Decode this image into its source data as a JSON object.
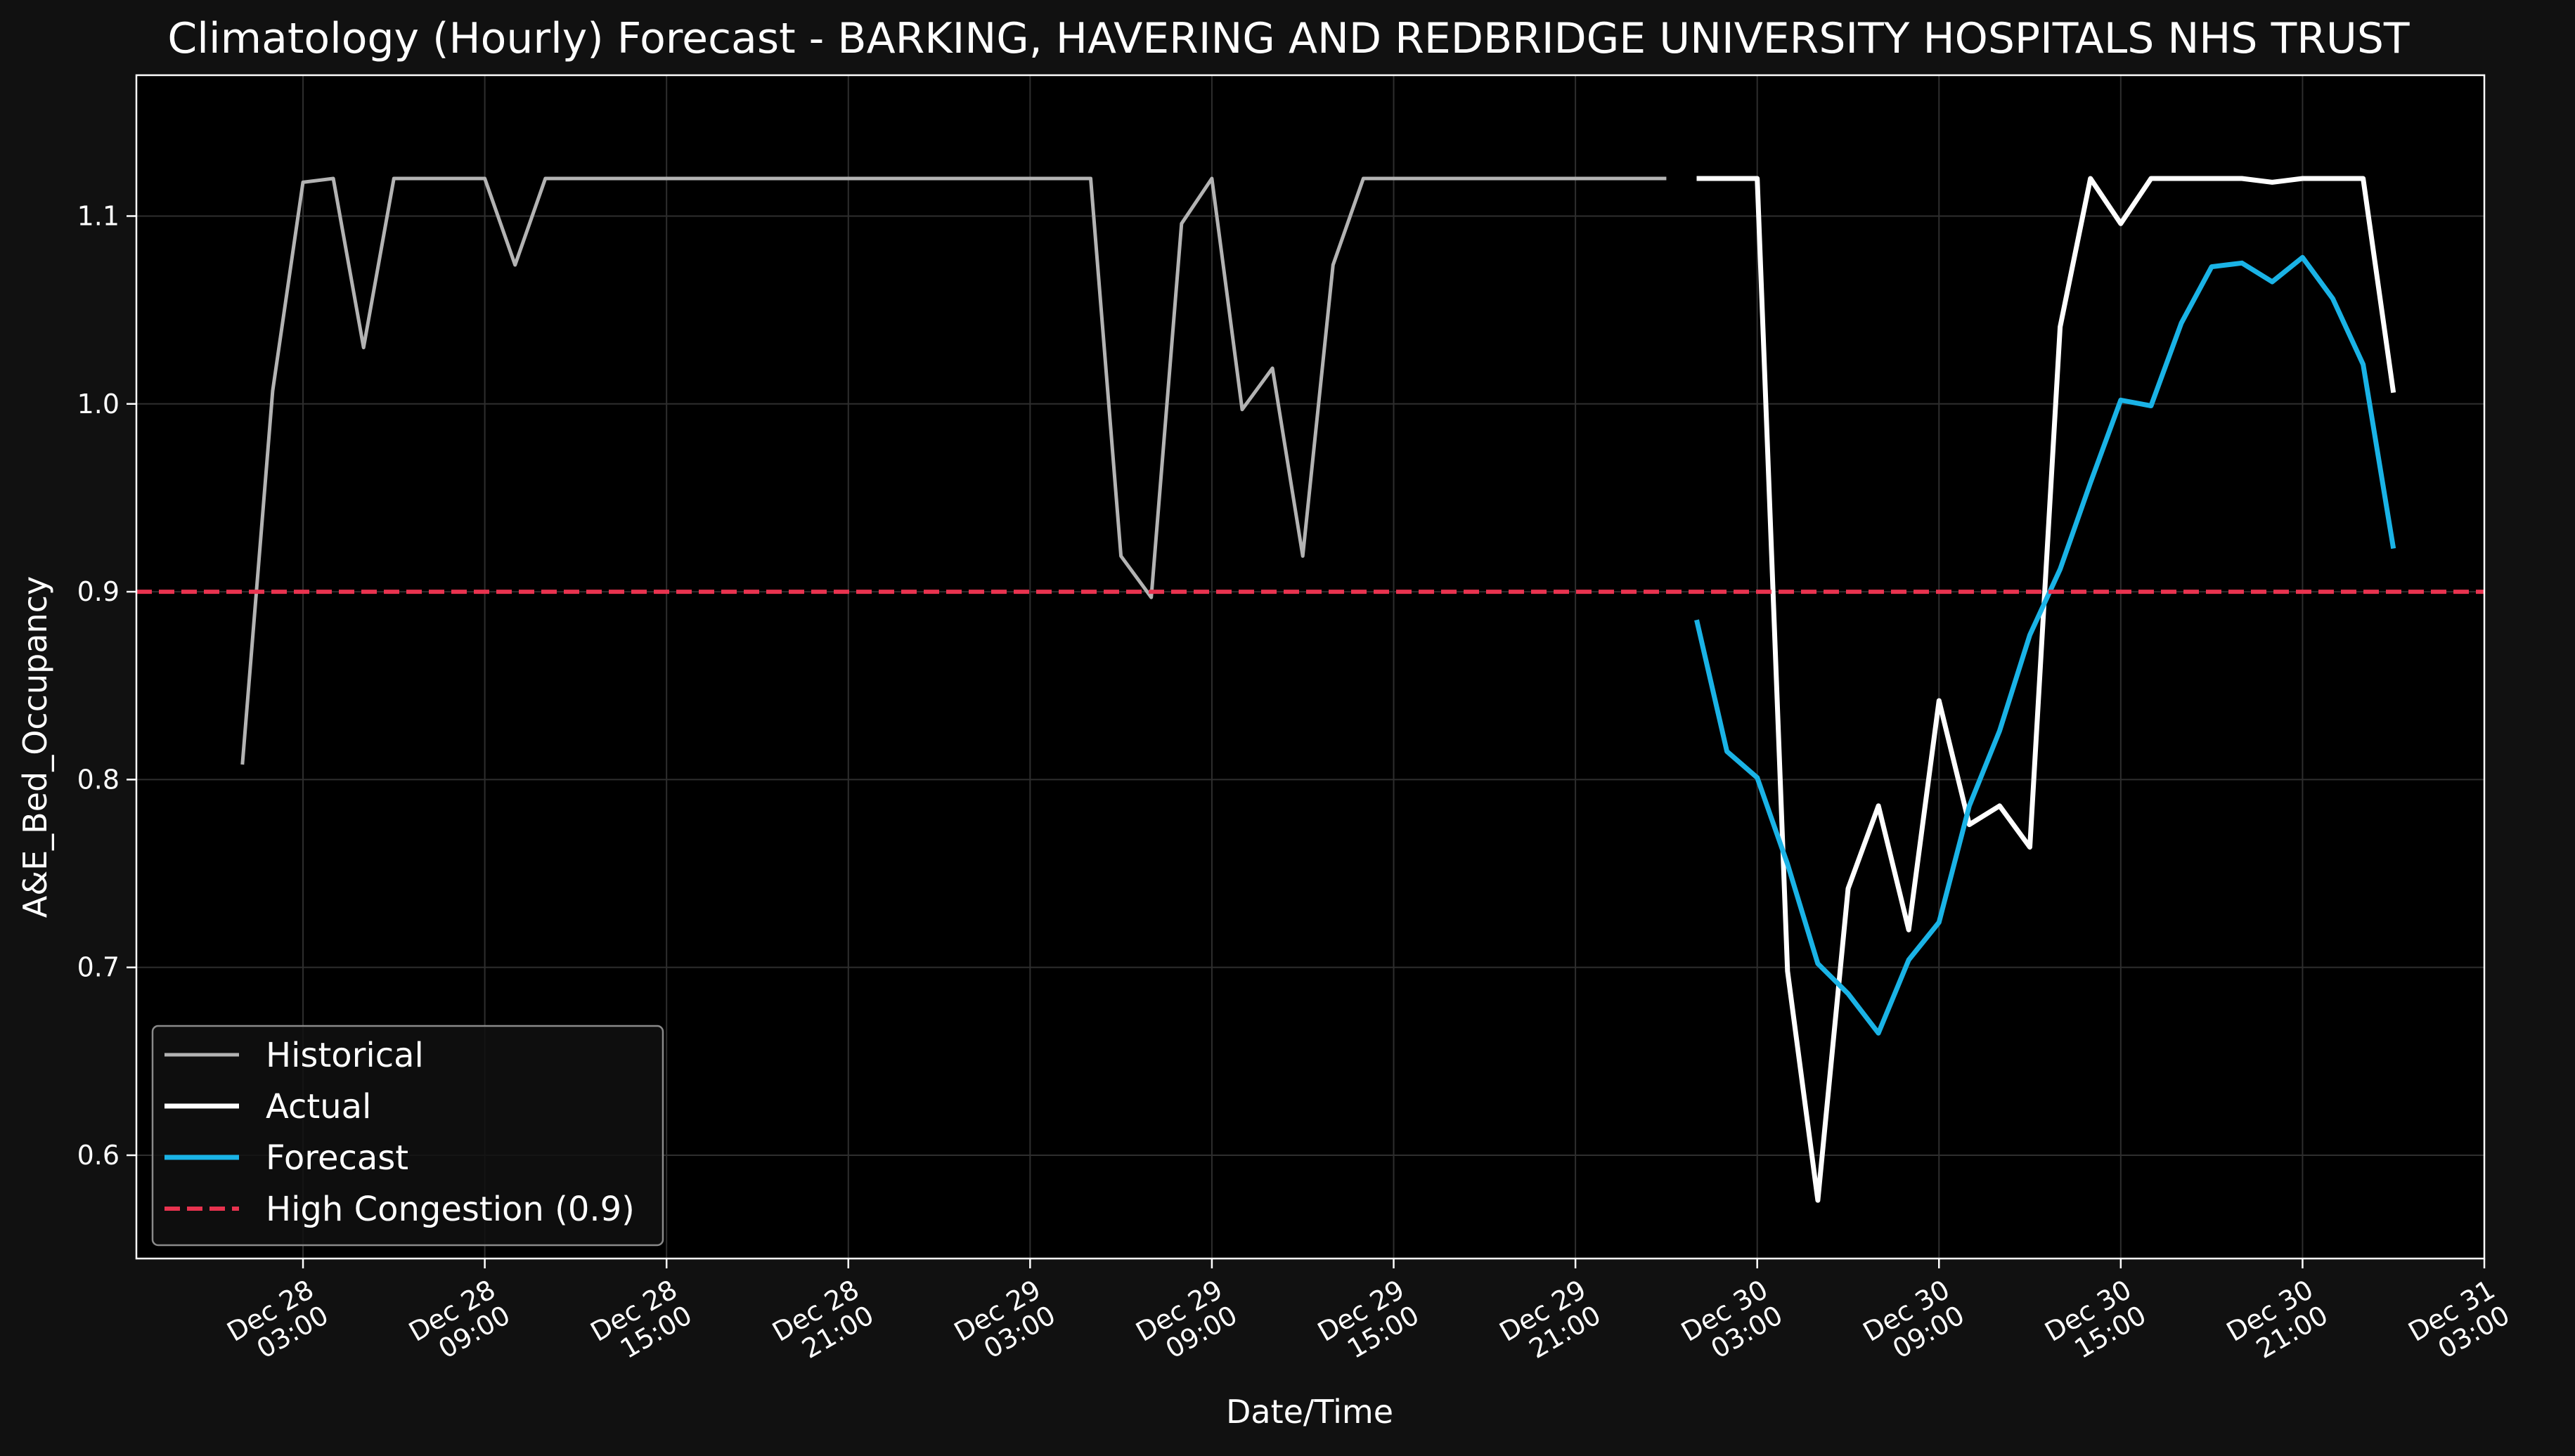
{
  "chart_data": {
    "type": "line",
    "title": "Climatology (Hourly) Forecast - BARKING, HAVERING AND REDBRIDGE UNIVERSITY HOSPITALS NHS TRUST",
    "xlabel": "Date/Time",
    "ylabel": "A&E_Bed_Occupancy",
    "ylim": [
      0.545,
      1.175
    ],
    "yticks": [
      0.6,
      0.7,
      0.8,
      0.9,
      1.0,
      1.1
    ],
    "ytick_labels": [
      "0.6",
      "0.7",
      "0.8",
      "0.9",
      "1.0",
      "1.1"
    ],
    "xlim": [
      "2021-12-27 21:30",
      "2021-12-31 03:00"
    ],
    "xticks": [
      {
        "t": "2021-12-28 03:00",
        "line1": "Dec 28",
        "line2": "03:00"
      },
      {
        "t": "2021-12-28 09:00",
        "line1": "Dec 28",
        "line2": "09:00"
      },
      {
        "t": "2021-12-28 15:00",
        "line1": "Dec 28",
        "line2": "15:00"
      },
      {
        "t": "2021-12-28 21:00",
        "line1": "Dec 28",
        "line2": "21:00"
      },
      {
        "t": "2021-12-29 03:00",
        "line1": "Dec 29",
        "line2": "03:00"
      },
      {
        "t": "2021-12-29 09:00",
        "line1": "Dec 29",
        "line2": "09:00"
      },
      {
        "t": "2021-12-29 15:00",
        "line1": "Dec 29",
        "line2": "15:00"
      },
      {
        "t": "2021-12-29 21:00",
        "line1": "Dec 29",
        "line2": "21:00"
      },
      {
        "t": "2021-12-30 03:00",
        "line1": "Dec 30",
        "line2": "03:00"
      },
      {
        "t": "2021-12-30 09:00",
        "line1": "Dec 30",
        "line2": "09:00"
      },
      {
        "t": "2021-12-30 15:00",
        "line1": "Dec 30",
        "line2": "15:00"
      },
      {
        "t": "2021-12-30 21:00",
        "line1": "Dec 30",
        "line2": "21:00"
      },
      {
        "t": "2021-12-31 03:00",
        "line1": "Dec 31",
        "line2": "03:00"
      }
    ],
    "grid": true,
    "legend_position": "lower-left",
    "series": [
      {
        "name": "Historical",
        "color": "#b3b3b3",
        "x": [
          "2021-12-28 01:00",
          "2021-12-28 02:00",
          "2021-12-28 03:00",
          "2021-12-28 04:00",
          "2021-12-28 05:00",
          "2021-12-28 06:00",
          "2021-12-28 07:00",
          "2021-12-28 08:00",
          "2021-12-28 09:00",
          "2021-12-28 10:00",
          "2021-12-28 11:00",
          "2021-12-28 12:00",
          "2021-12-28 13:00",
          "2021-12-28 14:00",
          "2021-12-28 15:00",
          "2021-12-28 16:00",
          "2021-12-28 17:00",
          "2021-12-28 18:00",
          "2021-12-28 19:00",
          "2021-12-28 20:00",
          "2021-12-28 21:00",
          "2021-12-28 22:00",
          "2021-12-28 23:00",
          "2021-12-29 00:00",
          "2021-12-29 01:00",
          "2021-12-29 02:00",
          "2021-12-29 03:00",
          "2021-12-29 04:00",
          "2021-12-29 05:00",
          "2021-12-29 06:00",
          "2021-12-29 07:00",
          "2021-12-29 08:00",
          "2021-12-29 09:00",
          "2021-12-29 10:00",
          "2021-12-29 11:00",
          "2021-12-29 12:00",
          "2021-12-29 13:00",
          "2021-12-29 14:00",
          "2021-12-29 15:00",
          "2021-12-29 16:00",
          "2021-12-29 17:00",
          "2021-12-29 18:00",
          "2021-12-29 19:00",
          "2021-12-29 20:00",
          "2021-12-29 21:00",
          "2021-12-29 22:00",
          "2021-12-29 23:00",
          "2021-12-30 00:00"
        ],
        "y": [
          0.808,
          1.007,
          1.118,
          1.12,
          1.03,
          1.12,
          1.12,
          1.12,
          1.12,
          1.074,
          1.12,
          1.12,
          1.12,
          1.12,
          1.12,
          1.12,
          1.12,
          1.12,
          1.12,
          1.12,
          1.12,
          1.12,
          1.12,
          1.12,
          1.12,
          1.12,
          1.12,
          1.12,
          1.12,
          0.919,
          0.897,
          1.096,
          1.12,
          0.997,
          1.019,
          0.919,
          1.074,
          1.12,
          1.12,
          1.12,
          1.12,
          1.12,
          1.12,
          1.12,
          1.12,
          1.12,
          1.12,
          1.12
        ]
      },
      {
        "name": "Actual",
        "color": "#ffffff",
        "x": [
          "2021-12-30 01:00",
          "2021-12-30 02:00",
          "2021-12-30 03:00",
          "2021-12-30 04:00",
          "2021-12-30 05:00",
          "2021-12-30 06:00",
          "2021-12-30 07:00",
          "2021-12-30 08:00",
          "2021-12-30 09:00",
          "2021-12-30 10:00",
          "2021-12-30 11:00",
          "2021-12-30 12:00",
          "2021-12-30 13:00",
          "2021-12-30 14:00",
          "2021-12-30 15:00",
          "2021-12-30 16:00",
          "2021-12-30 17:00",
          "2021-12-30 18:00",
          "2021-12-30 19:00",
          "2021-12-30 20:00",
          "2021-12-30 21:00",
          "2021-12-30 22:00",
          "2021-12-30 23:00",
          "2021-12-31 00:00"
        ],
        "y": [
          1.12,
          1.12,
          1.12,
          0.698,
          0.576,
          0.742,
          0.786,
          0.72,
          0.842,
          0.776,
          0.786,
          0.764,
          1.041,
          1.12,
          1.096,
          1.12,
          1.12,
          1.12,
          1.12,
          1.118,
          1.12,
          1.12,
          1.12,
          1.006
        ]
      },
      {
        "name": "Forecast",
        "color": "#1ab3e6",
        "x": [
          "2021-12-30 01:00",
          "2021-12-30 02:00",
          "2021-12-30 03:00",
          "2021-12-30 04:00",
          "2021-12-30 05:00",
          "2021-12-30 06:00",
          "2021-12-30 07:00",
          "2021-12-30 08:00",
          "2021-12-30 09:00",
          "2021-12-30 10:00",
          "2021-12-30 11:00",
          "2021-12-30 12:00",
          "2021-12-30 13:00",
          "2021-12-30 14:00",
          "2021-12-30 15:00",
          "2021-12-30 16:00",
          "2021-12-30 17:00",
          "2021-12-30 18:00",
          "2021-12-30 19:00",
          "2021-12-30 20:00",
          "2021-12-30 21:00",
          "2021-12-30 22:00",
          "2021-12-30 23:00",
          "2021-12-31 00:00"
        ],
        "y": [
          0.885,
          0.815,
          0.801,
          0.755,
          0.702,
          0.686,
          0.665,
          0.704,
          0.724,
          0.786,
          0.826,
          0.877,
          0.912,
          0.958,
          1.002,
          0.999,
          1.043,
          1.073,
          1.075,
          1.065,
          1.078,
          1.056,
          1.021,
          0.923
        ]
      }
    ],
    "reference_line": {
      "name": "High Congestion (0.9)",
      "y": 0.9,
      "color": "#e8334f",
      "style": "dashed"
    }
  }
}
